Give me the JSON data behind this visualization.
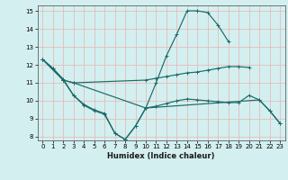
{
  "xlabel": "Humidex (Indice chaleur)",
  "bg_color": "#d4efef",
  "grid_color": "#e8b4b4",
  "line_color": "#1a6b6b",
  "xlim": [
    -0.5,
    23.5
  ],
  "ylim": [
    7.8,
    15.3
  ],
  "yticks": [
    8,
    9,
    10,
    11,
    12,
    13,
    14,
    15
  ],
  "xticks": [
    0,
    1,
    2,
    3,
    4,
    5,
    6,
    7,
    8,
    9,
    10,
    11,
    12,
    13,
    14,
    15,
    16,
    17,
    18,
    19,
    20,
    21,
    22,
    23
  ],
  "line1_x": [
    0,
    1,
    2,
    3,
    4,
    5,
    6,
    7,
    8,
    9,
    10,
    11,
    12,
    13,
    14,
    15,
    16,
    17,
    18
  ],
  "line1_y": [
    12.3,
    11.8,
    11.2,
    10.3,
    9.8,
    9.5,
    9.3,
    8.2,
    7.85,
    8.6,
    9.6,
    11.0,
    12.5,
    13.7,
    15.0,
    15.0,
    14.9,
    14.2,
    13.3
  ],
  "line2_x": [
    0,
    2,
    3,
    10,
    11,
    12,
    13,
    14,
    15,
    16,
    17,
    18,
    19,
    20
  ],
  "line2_y": [
    12.3,
    11.15,
    11.0,
    11.15,
    11.25,
    11.35,
    11.45,
    11.55,
    11.6,
    11.7,
    11.8,
    11.9,
    11.9,
    11.85
  ],
  "line3_x": [
    0,
    2,
    3,
    10,
    11,
    12,
    13,
    14,
    15,
    16,
    17,
    18,
    19,
    20,
    21,
    22,
    23
  ],
  "line3_y": [
    12.3,
    11.15,
    11.0,
    9.6,
    9.7,
    9.85,
    10.0,
    10.1,
    10.05,
    10.0,
    9.95,
    9.9,
    9.9,
    10.3,
    10.05,
    9.45,
    8.75
  ],
  "line4_x": [
    0,
    1,
    2,
    3,
    4,
    5,
    6,
    7,
    8,
    9,
    10,
    21,
    22,
    23
  ],
  "line4_y": [
    12.3,
    11.8,
    11.15,
    10.3,
    9.75,
    9.45,
    9.25,
    8.2,
    7.85,
    8.6,
    9.6,
    10.05,
    9.45,
    8.75
  ]
}
